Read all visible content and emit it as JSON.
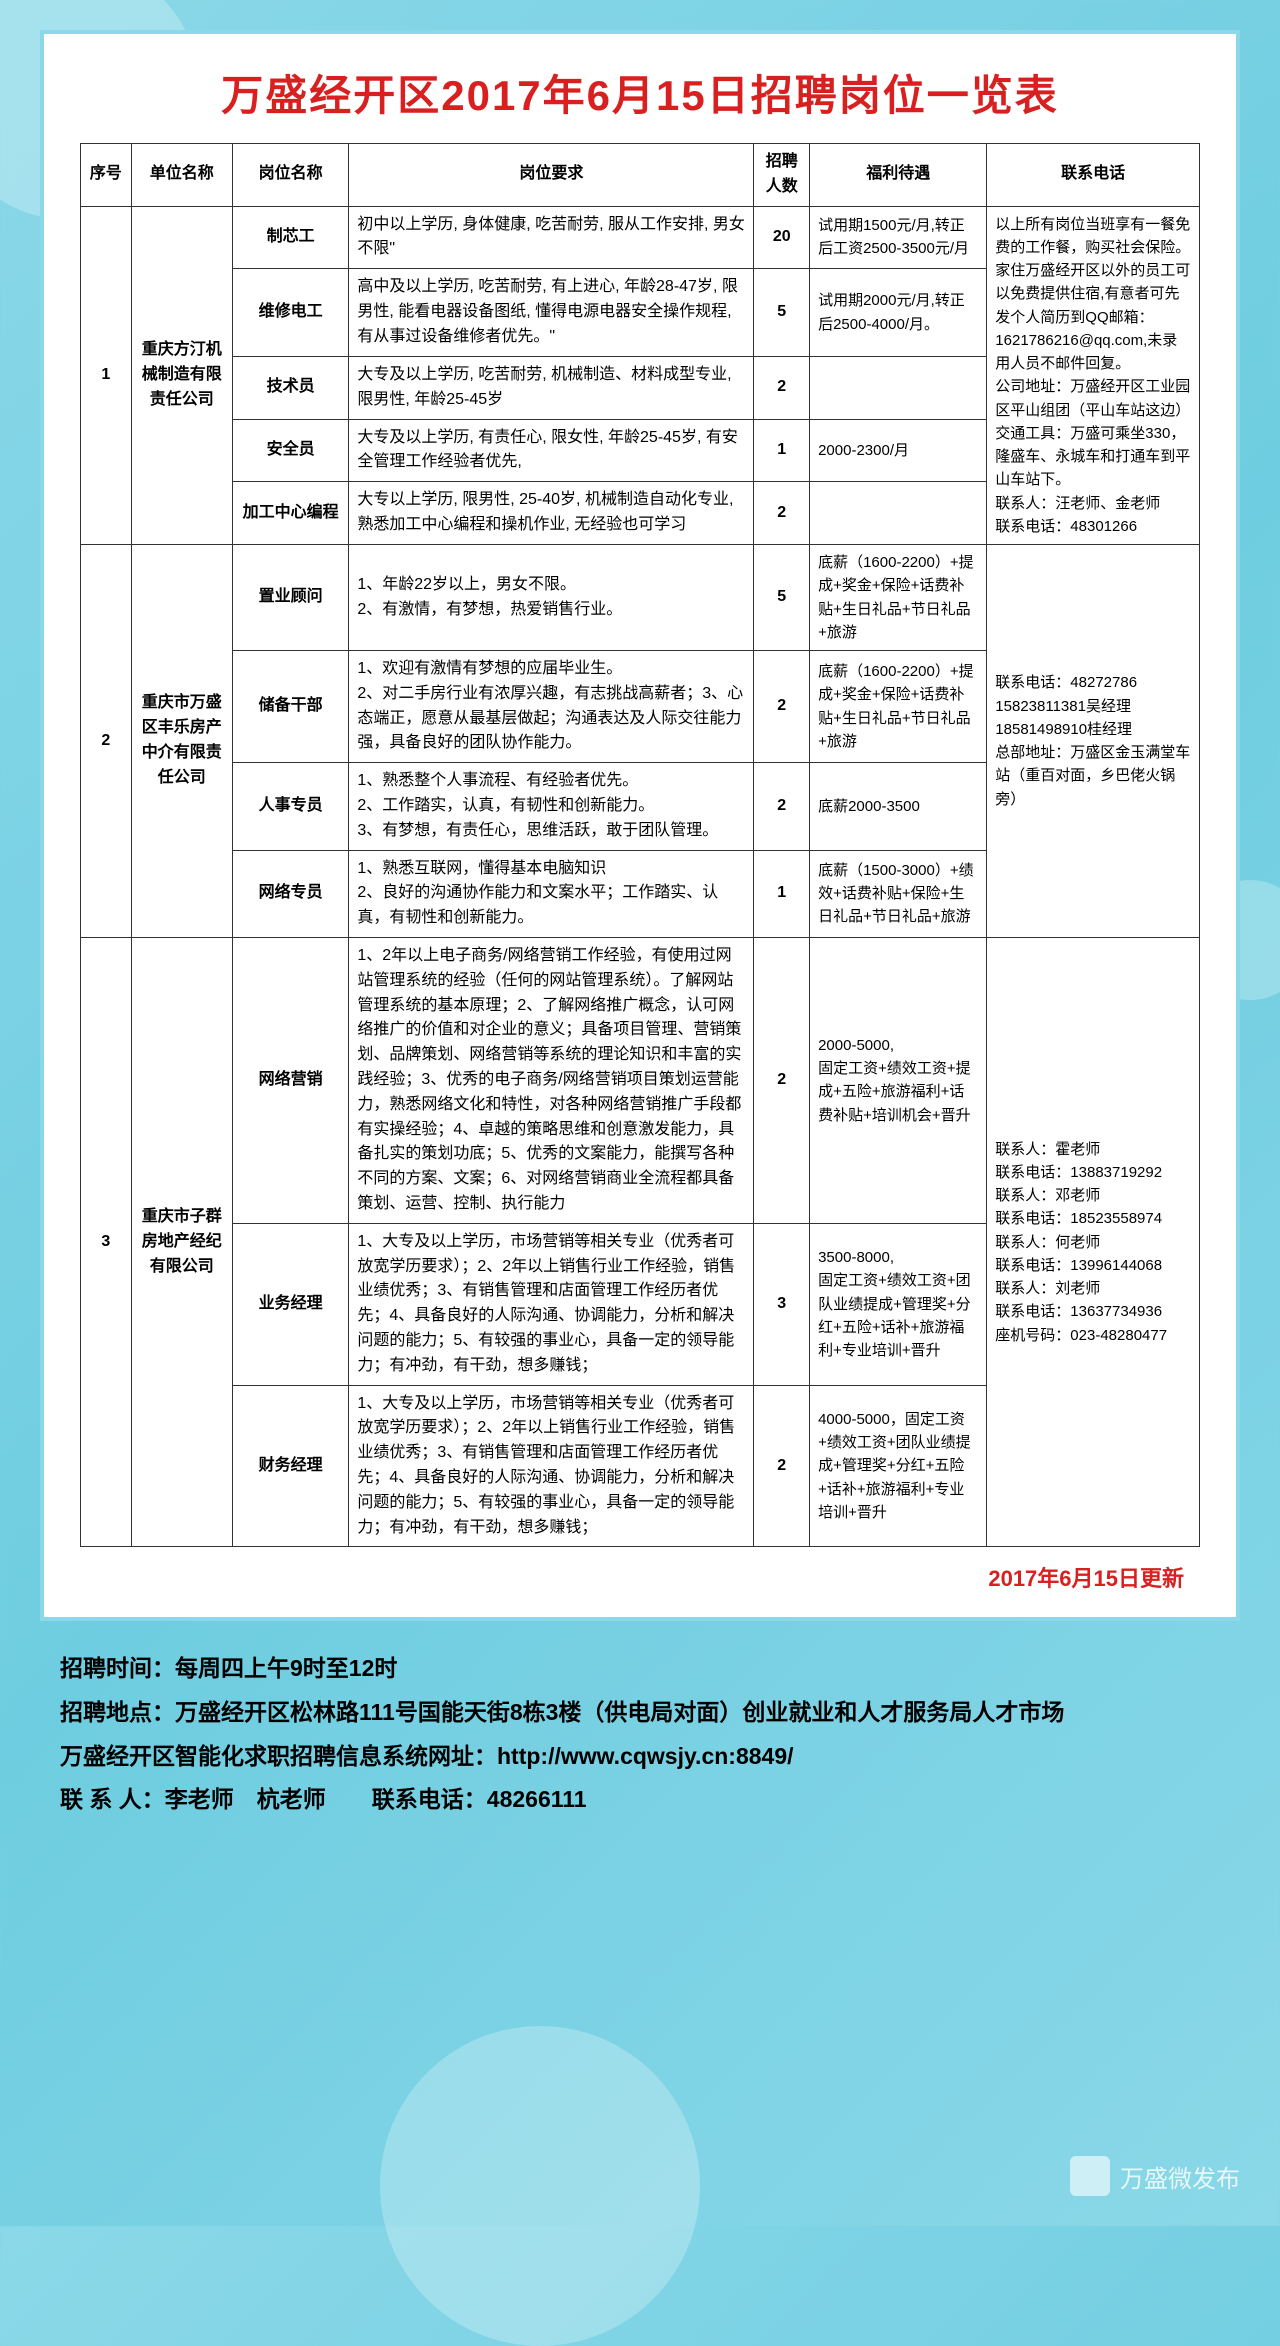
{
  "title": "万盛经开区2017年6月15日招聘岗位一览表",
  "headers": [
    "序号",
    "单位名称",
    "岗位名称",
    "岗位要求",
    "招聘人数",
    "福利待遇",
    "联系电话"
  ],
  "groups": [
    {
      "seq": "1",
      "company": "重庆方汀机械制造有限责任公司",
      "contact": "以上所有岗位当班享有一餐免费的工作餐，购买社会保险。家住万盛经开区以外的员工可以免费提供住宿,有意者可先发个人简历到QQ邮箱：1621786216@qq.com,未录用人员不邮件回复。\n公司地址：万盛经开区工业园区平山组团（平山车站这边）\n交通工具：万盛可乘坐330，隆盛车、永城车和打通车到平山车站下。\n联系人：汪老师、金老师　　联系电话：48301266",
      "posts": [
        {
          "name": "制芯工",
          "req": "初中以上学历, 身体健康, 吃苦耐劳, 服从工作安排, 男女不限\"",
          "num": "20",
          "benefit": "试用期1500元/月,转正后工资2500-3500元/月"
        },
        {
          "name": "维修电工",
          "req": "高中及以上学历, 吃苦耐劳, 有上进心, 年龄28-47岁, 限男性, 能看电器设备图纸, 懂得电源电器安全操作规程, 有从事过设备维修者优先。\"",
          "num": "5",
          "benefit": "试用期2000元/月,转正后2500-4000/月。"
        },
        {
          "name": "技术员",
          "req": "大专及以上学历, 吃苦耐劳, 机械制造、材料成型专业, 限男性, 年龄25-45岁",
          "num": "2",
          "benefit": ""
        },
        {
          "name": "安全员",
          "req": "大专及以上学历, 有责任心, 限女性, 年龄25-45岁, 有安全管理工作经验者优先,",
          "num": "1",
          "benefit": "2000-2300/月"
        },
        {
          "name": "加工中心编程",
          "req": "大专以上学历, 限男性, 25-40岁, 机械制造自动化专业, 熟悉加工中心编程和操机作业, 无经验也可学习",
          "num": "2",
          "benefit": ""
        }
      ]
    },
    {
      "seq": "2",
      "company": "重庆市万盛区丰乐房产中介有限责任公司",
      "contact": "联系电话：48272786\n15823811381吴经理\n18581498910桂经理\n总部地址：万盛区金玉满堂车站（重百对面，乡巴佬火锅旁）",
      "posts": [
        {
          "name": "置业顾问",
          "req": "1、年龄22岁以上，男女不限。\n2、有激情，有梦想，热爱销售行业。",
          "num": "5",
          "benefit": "底薪（1600-2200）+提成+奖金+保险+话费补贴+生日礼品+节日礼品+旅游"
        },
        {
          "name": "储备干部",
          "req": "1、欢迎有激情有梦想的应届毕业生。\n2、对二手房行业有浓厚兴趣，有志挑战高薪者；3、心态端正，愿意从最基层做起；沟通表达及人际交往能力强，具备良好的团队协作能力。",
          "num": "2",
          "benefit": "底薪（1600-2200）+提成+奖金+保险+话费补贴+生日礼品+节日礼品+旅游"
        },
        {
          "name": "人事专员",
          "req": "1、熟悉整个人事流程、有经验者优先。\n2、工作踏实，认真，有韧性和创新能力。\n3、有梦想，有责任心，思维活跃，敢于团队管理。",
          "num": "2",
          "benefit": "底薪2000-3500"
        },
        {
          "name": "网络专员",
          "req": "1、熟悉互联网，懂得基本电脑知识\n2、良好的沟通协作能力和文案水平；工作踏实、认真，有韧性和创新能力。",
          "num": "1",
          "benefit": "底薪（1500-3000）+绩效+话费补贴+保险+生日礼品+节日礼品+旅游"
        }
      ]
    },
    {
      "seq": "3",
      "company": "重庆市子群房地产经纪有限公司",
      "contact": "联系人：霍老师\n联系电话：13883719292\n联系人：邓老师\n联系电话：18523558974\n联系人：何老师\n联系电话：13996144068\n联系人：刘老师\n联系电话：13637734936\n座机号码：023-48280477",
      "posts": [
        {
          "name": "网络营销",
          "req": "1、2年以上电子商务/网络营销工作经验，有使用过网站管理系统的经验（任何的网站管理系统）。了解网站管理系统的基本原理；2、了解网络推广概念，认可网络推广的价值和对企业的意义；具备项目管理、营销策划、品牌策划、网络营销等系统的理论知识和丰富的实践经验；3、优秀的电子商务/网络营销项目策划运营能力，熟悉网络文化和特性，对各种网络营销推广手段都有实操经验；4、卓越的策略思维和创意激发能力，具备扎实的策划功底；5、优秀的文案能力，能撰写各种不同的方案、文案；6、对网络营销商业全流程都具备策划、运营、控制、执行能力",
          "num": "2",
          "benefit": "2000-5000,\n固定工资+绩效工资+提成+五险+旅游福利+话费补贴+培训机会+晋升"
        },
        {
          "name": "业务经理",
          "req": "1、大专及以上学历，市场营销等相关专业（优秀者可放宽学历要求）；2、2年以上销售行业工作经验，销售业绩优秀；3、有销售管理和店面管理工作经历者优先；4、具备良好的人际沟通、协调能力，分析和解决问题的能力；5、有较强的事业心，具备一定的领导能力；有冲劲，有干劲，想多赚钱；",
          "num": "3",
          "benefit": "3500-8000,\n固定工资+绩效工资+团队业绩提成+管理奖+分红+五险+话补+旅游福利+专业培训+晋升"
        },
        {
          "name": "财务经理",
          "req": "1、大专及以上学历，市场营销等相关专业（优秀者可放宽学历要求）；2、2年以上销售行业工作经验，销售业绩优秀；3、有销售管理和店面管理工作经历者优先；4、具备良好的人际沟通、协调能力，分析和解决问题的能力；5、有较强的事业心，具备一定的领导能力；有冲劲，有干劲，想多赚钱；",
          "num": "2",
          "benefit": "4000-5000，固定工资+绩效工资+团队业绩提成+管理奖+分红+五险+话补+旅游福利+专业培训+晋升"
        }
      ]
    }
  ],
  "update": "2017年6月15日更新",
  "footer": [
    "招聘时间：每周四上午9时至12时",
    "招聘地点：万盛经开区松林路111号国能天街8栋3楼（供电局对面）创业就业和人才服务局人才市场",
    "万盛经开区智能化求职招聘信息系统网址：http://www.cqwsjy.cn:8849/",
    "联 系 人：李老师　杭老师　　联系电话：48266111"
  ],
  "watermark": "万盛微发布"
}
